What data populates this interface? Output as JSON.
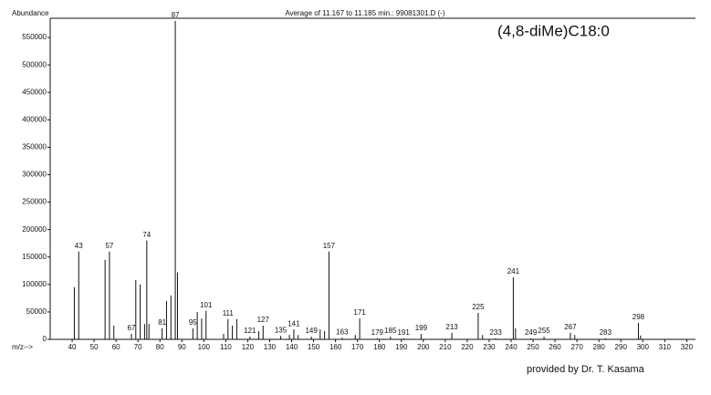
{
  "chart_data": {
    "type": "spectrum",
    "title": "Average of 11.167 to 11.185 min.: 99081301.D (-)",
    "y_label": "Abundance",
    "x_label": "m/z-->",
    "annotation": "(4,8-diMe)C18:0",
    "credit": "provided by Dr. T. Kasama",
    "color": "#111111",
    "x": [
      41,
      43,
      55,
      57,
      59,
      67,
      69,
      71,
      73,
      74,
      75,
      81,
      83,
      85,
      87,
      88,
      95,
      97,
      99,
      101,
      109,
      111,
      113,
      115,
      121,
      125,
      127,
      135,
      139,
      141,
      143,
      149,
      153,
      155,
      157,
      163,
      169,
      171,
      179,
      185,
      191,
      199,
      213,
      225,
      227,
      233,
      241,
      242,
      249,
      255,
      267,
      269,
      283,
      298,
      299
    ],
    "values": [
      95000,
      160000,
      145000,
      160000,
      25000,
      10000,
      108000,
      100000,
      28000,
      180000,
      28000,
      20000,
      70000,
      80000,
      580000,
      122000,
      20000,
      50000,
      38000,
      52000,
      10000,
      37000,
      25000,
      37000,
      5000,
      15000,
      25000,
      6000,
      8000,
      18000,
      8000,
      5000,
      18000,
      15000,
      160000,
      3000,
      8000,
      38000,
      2000,
      5000,
      2000,
      10000,
      12000,
      48000,
      8000,
      2000,
      113000,
      20000,
      2000,
      5000,
      12000,
      8000,
      2000,
      30000,
      7000
    ],
    "peak_labels": [
      null,
      43,
      null,
      57,
      null,
      67,
      null,
      null,
      null,
      74,
      null,
      81,
      null,
      null,
      87,
      null,
      95,
      null,
      null,
      101,
      null,
      111,
      null,
      null,
      121,
      null,
      127,
      135,
      null,
      141,
      null,
      149,
      null,
      null,
      157,
      163,
      null,
      171,
      179,
      185,
      191,
      199,
      213,
      225,
      null,
      233,
      241,
      null,
      249,
      255,
      267,
      null,
      283,
      298,
      null
    ],
    "xlim": [
      30,
      324
    ],
    "ylim": [
      0,
      585000
    ],
    "xticks": [
      40,
      50,
      60,
      70,
      80,
      90,
      100,
      110,
      120,
      130,
      140,
      150,
      160,
      170,
      180,
      190,
      200,
      210,
      220,
      230,
      240,
      250,
      260,
      270,
      280,
      290,
      300,
      310,
      320
    ],
    "yticks": [
      0,
      50000,
      100000,
      150000,
      200000,
      250000,
      300000,
      350000,
      400000,
      450000,
      500000,
      550000
    ]
  }
}
